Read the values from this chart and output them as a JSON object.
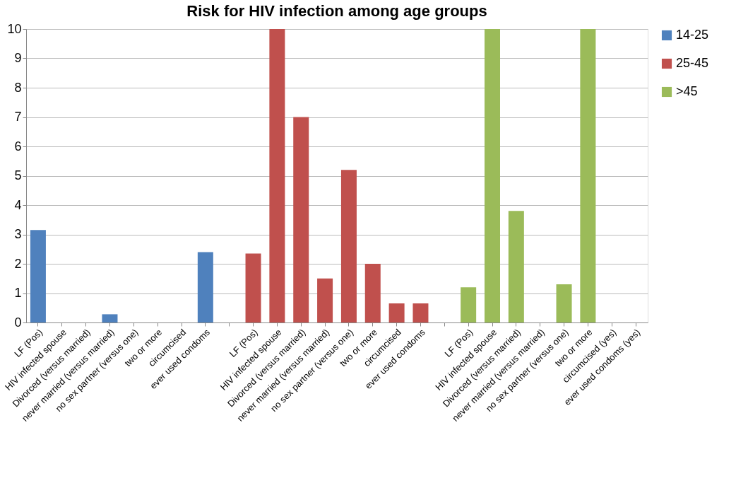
{
  "chart_data": {
    "type": "bar",
    "title": "Risk for HIV infection among  age groups",
    "categories": [
      "LF (Pos)",
      "HIV infected spouse",
      "Divorced (versus married)",
      "never married (versus married)",
      "no sex partner (versus one)",
      "two or more",
      "circumcised",
      "ever used condoms",
      null,
      "LF (Pos)",
      "HIV infected spouse",
      "Divorced (versus married)",
      "never married (versus married)",
      "no sex partner (versus one)",
      "two or more",
      "circumcised",
      "ever used condoms",
      null,
      "LF (Pos)",
      "HIV infected spouse",
      "Divorced (versus married)",
      "never married (versus married)",
      "no sex partner (versus one)",
      "two or more",
      "circumcised (yes)",
      "ever used condoms (yes)"
    ],
    "series": [
      {
        "name": "14-25",
        "color": "#4f81bd",
        "values": [
          3.15,
          null,
          null,
          0.28,
          null,
          null,
          null,
          2.4,
          null,
          null,
          null,
          null,
          null,
          null,
          null,
          null,
          null,
          null,
          null,
          null,
          null,
          null,
          null,
          null,
          null,
          null
        ]
      },
      {
        "name": "25-45",
        "color": "#c0504d",
        "values": [
          null,
          null,
          null,
          null,
          null,
          null,
          null,
          null,
          null,
          2.35,
          10,
          7,
          1.5,
          5.2,
          2,
          0.65,
          0.65,
          null,
          null,
          null,
          null,
          null,
          null,
          null,
          null,
          null
        ]
      },
      {
        "name": ">45",
        "color": "#9bbb59",
        "values": [
          null,
          null,
          null,
          null,
          null,
          null,
          null,
          null,
          null,
          null,
          null,
          null,
          null,
          null,
          null,
          null,
          null,
          null,
          1.2,
          10,
          3.8,
          null,
          1.3,
          10,
          null,
          null
        ]
      }
    ],
    "ylim": [
      0,
      10
    ],
    "yticks": [
      0,
      1,
      2,
      3,
      4,
      5,
      6,
      7,
      8,
      9,
      10
    ],
    "grid": "y",
    "legend": "right"
  }
}
